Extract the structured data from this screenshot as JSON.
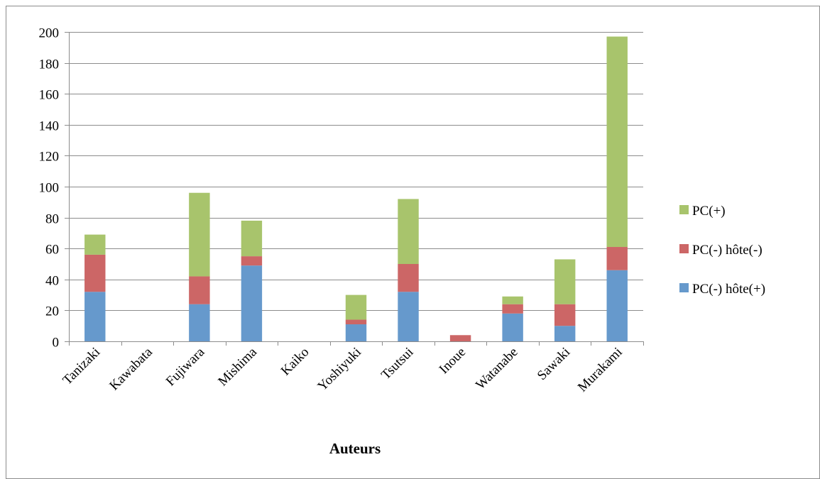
{
  "chart_data": {
    "type": "bar",
    "stacked": true,
    "title": "",
    "xlabel": "Auteurs",
    "ylabel": "",
    "ylim": [
      0,
      200
    ],
    "yticks": [
      0,
      20,
      40,
      60,
      80,
      100,
      120,
      140,
      160,
      180,
      200
    ],
    "grid": true,
    "legend_position": "right",
    "categories": [
      "Tanizaki",
      "Kawabata",
      "Fujiwara",
      "Mishima",
      "Kaiko",
      "Yoshiyuki",
      "Tsutsui",
      "Inoue",
      "Watanabe",
      "Sawaki",
      "Murakami"
    ],
    "series": [
      {
        "name": "PC(-) hôte(+)",
        "color": "#6699CC",
        "values": [
          32,
          0,
          24,
          49,
          0,
          11,
          32,
          0,
          18,
          10,
          46
        ]
      },
      {
        "name": "PC(-) hôte(-)",
        "color": "#CC6666",
        "values": [
          24,
          0,
          18,
          6,
          0,
          3,
          18,
          4,
          6,
          14,
          15
        ]
      },
      {
        "name": "PC(+)",
        "color": "#A8C46C",
        "values": [
          13,
          0,
          54,
          23,
          0,
          16,
          42,
          0,
          5,
          29,
          136
        ]
      }
    ]
  }
}
